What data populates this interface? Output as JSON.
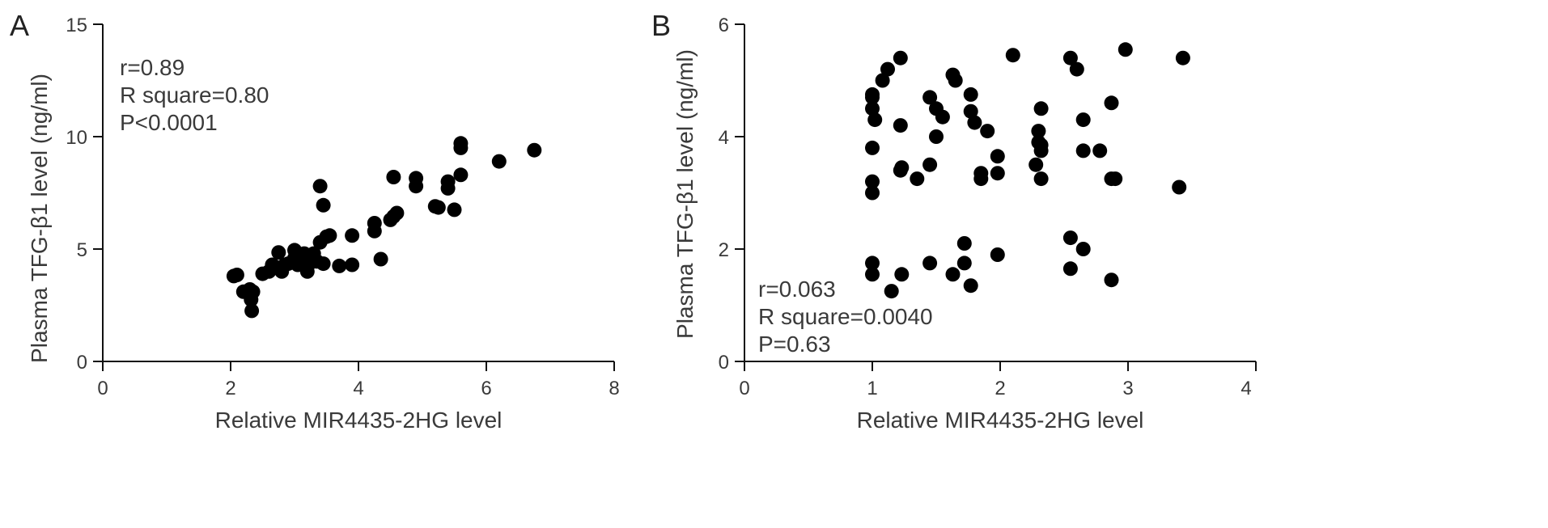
{
  "chart_data": [
    {
      "type": "scatter",
      "panel": "A",
      "xlabel": "Relative MIR4435-2HG level",
      "ylabel": "Plasma TFG-β1 level (ng/ml)",
      "xlim": [
        0,
        8
      ],
      "ylim": [
        0,
        15
      ],
      "xticks": [
        "0",
        "2",
        "4",
        "6",
        "8"
      ],
      "yticks": [
        "0",
        "5",
        "10",
        "15"
      ],
      "stats": [
        "r=0.89",
        "R square=0.80",
        "P<0.0001"
      ],
      "grid": false,
      "points": [
        [
          2.05,
          3.8
        ],
        [
          2.1,
          3.85
        ],
        [
          2.2,
          3.1
        ],
        [
          2.3,
          3.2
        ],
        [
          2.32,
          2.75
        ],
        [
          2.33,
          2.25
        ],
        [
          2.35,
          3.1
        ],
        [
          2.5,
          3.9
        ],
        [
          2.6,
          4.0
        ],
        [
          2.65,
          4.3
        ],
        [
          2.7,
          4.2
        ],
        [
          2.75,
          4.85
        ],
        [
          2.8,
          4.0
        ],
        [
          2.85,
          4.3
        ],
        [
          2.9,
          4.35
        ],
        [
          3.0,
          4.6
        ],
        [
          3.0,
          4.95
        ],
        [
          3.05,
          4.3
        ],
        [
          3.1,
          4.5
        ],
        [
          3.15,
          4.8
        ],
        [
          3.2,
          4.0
        ],
        [
          3.25,
          4.4
        ],
        [
          3.3,
          4.8
        ],
        [
          3.35,
          4.45
        ],
        [
          3.4,
          5.3
        ],
        [
          3.4,
          7.8
        ],
        [
          3.45,
          6.95
        ],
        [
          3.45,
          4.35
        ],
        [
          3.5,
          5.55
        ],
        [
          3.55,
          5.6
        ],
        [
          3.7,
          4.25
        ],
        [
          3.9,
          5.6
        ],
        [
          3.9,
          4.3
        ],
        [
          4.25,
          6.15
        ],
        [
          4.25,
          5.8
        ],
        [
          4.35,
          4.55
        ],
        [
          4.5,
          6.3
        ],
        [
          4.55,
          6.45
        ],
        [
          4.55,
          8.2
        ],
        [
          4.6,
          6.6
        ],
        [
          4.9,
          7.8
        ],
        [
          4.9,
          8.15
        ],
        [
          5.2,
          6.9
        ],
        [
          5.25,
          6.85
        ],
        [
          5.4,
          7.7
        ],
        [
          5.4,
          8.0
        ],
        [
          5.5,
          6.75
        ],
        [
          5.6,
          8.3
        ],
        [
          5.6,
          9.5
        ],
        [
          5.6,
          9.7
        ],
        [
          6.2,
          8.9
        ],
        [
          6.75,
          9.4
        ]
      ]
    },
    {
      "type": "scatter",
      "panel": "B",
      "xlabel": "Relative MIR4435-2HG level",
      "ylabel": "Plasma TFG-β1 level (ng/ml)",
      "xlim": [
        0,
        4
      ],
      "ylim": [
        0,
        6
      ],
      "xticks": [
        "0",
        "1",
        "2",
        "3",
        "4"
      ],
      "yticks": [
        "0",
        "2",
        "4",
        "6"
      ],
      "stats": [
        "r=0.063",
        "R square=0.0040",
        "P=0.63"
      ],
      "grid": false,
      "points": [
        [
          1.0,
          4.7
        ],
        [
          1.0,
          4.75
        ],
        [
          1.0,
          4.5
        ],
        [
          1.0,
          3.8
        ],
        [
          1.0,
          3.2
        ],
        [
          1.0,
          3.0
        ],
        [
          1.0,
          1.75
        ],
        [
          1.0,
          1.55
        ],
        [
          1.02,
          4.3
        ],
        [
          1.08,
          5.0
        ],
        [
          1.12,
          5.2
        ],
        [
          1.15,
          1.25
        ],
        [
          1.22,
          5.4
        ],
        [
          1.22,
          4.2
        ],
        [
          1.22,
          3.4
        ],
        [
          1.23,
          3.45
        ],
        [
          1.23,
          1.55
        ],
        [
          1.35,
          3.25
        ],
        [
          1.45,
          4.7
        ],
        [
          1.45,
          3.5
        ],
        [
          1.45,
          1.75
        ],
        [
          1.5,
          4.5
        ],
        [
          1.5,
          4.0
        ],
        [
          1.55,
          4.35
        ],
        [
          1.63,
          5.1
        ],
        [
          1.63,
          1.55
        ],
        [
          1.65,
          5.0
        ],
        [
          1.72,
          2.1
        ],
        [
          1.72,
          1.75
        ],
        [
          1.77,
          4.75
        ],
        [
          1.77,
          4.45
        ],
        [
          1.77,
          1.35
        ],
        [
          1.8,
          4.25
        ],
        [
          1.85,
          3.35
        ],
        [
          1.85,
          3.25
        ],
        [
          1.9,
          4.1
        ],
        [
          1.98,
          3.65
        ],
        [
          1.98,
          3.35
        ],
        [
          1.98,
          1.9
        ],
        [
          2.1,
          5.45
        ],
        [
          2.28,
          3.5
        ],
        [
          2.3,
          4.1
        ],
        [
          2.3,
          3.9
        ],
        [
          2.32,
          4.5
        ],
        [
          2.32,
          3.85
        ],
        [
          2.32,
          3.75
        ],
        [
          2.32,
          3.25
        ],
        [
          2.55,
          5.4
        ],
        [
          2.55,
          2.2
        ],
        [
          2.55,
          1.65
        ],
        [
          2.6,
          5.2
        ],
        [
          2.65,
          4.3
        ],
        [
          2.65,
          3.75
        ],
        [
          2.65,
          2.0
        ],
        [
          2.78,
          3.75
        ],
        [
          2.87,
          4.6
        ],
        [
          2.87,
          3.25
        ],
        [
          2.87,
          1.45
        ],
        [
          2.9,
          3.25
        ],
        [
          2.98,
          5.55
        ],
        [
          3.4,
          3.1
        ],
        [
          3.43,
          5.4
        ]
      ]
    }
  ]
}
